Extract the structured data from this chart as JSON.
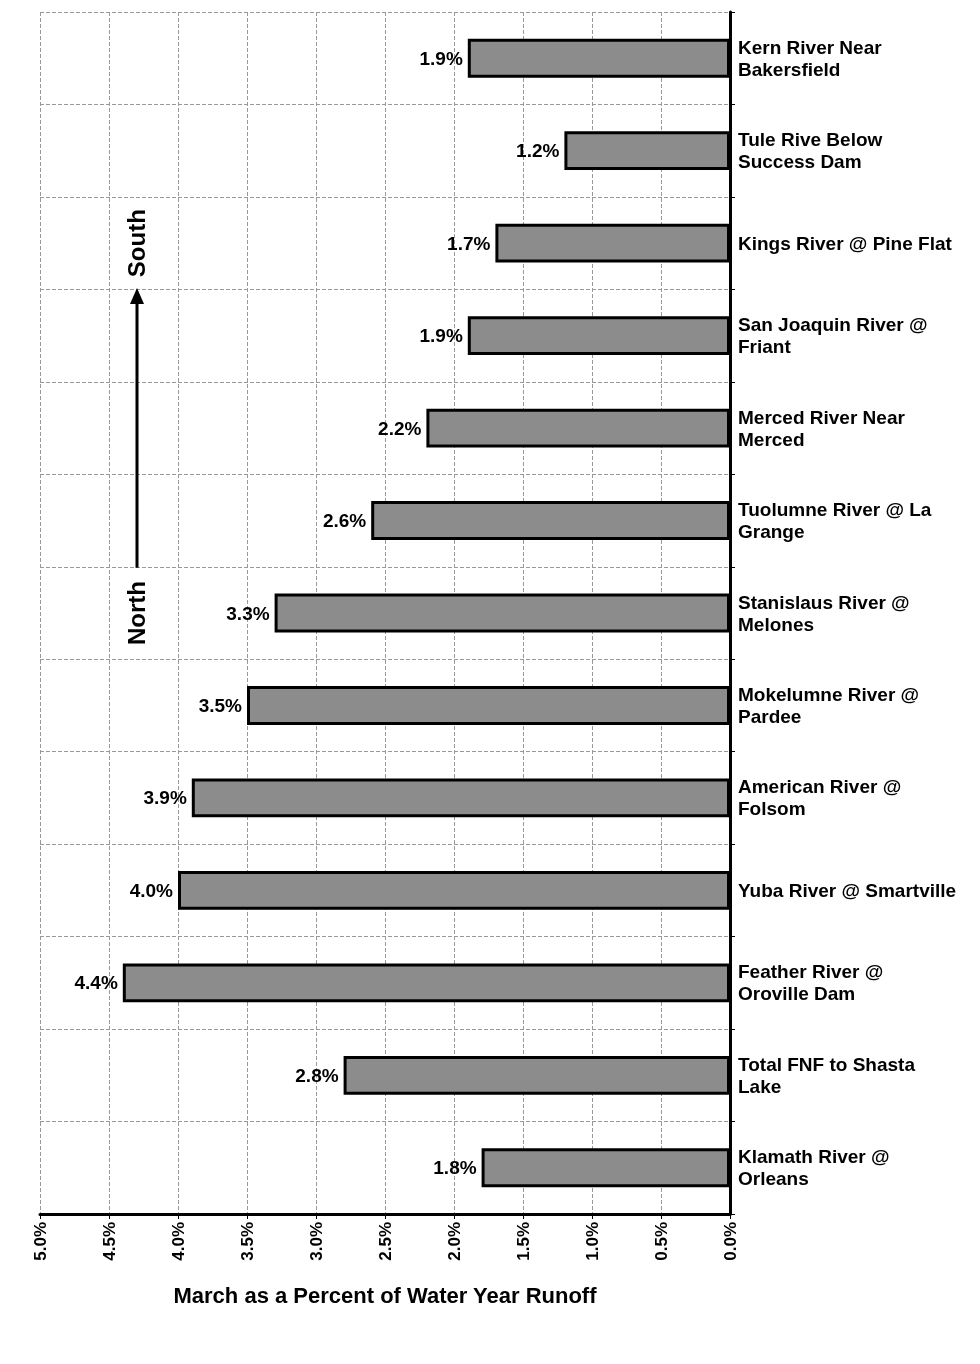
{
  "chart_data": {
    "type": "bar",
    "orientation": "horizontal",
    "xlabel": "March as a Percent of Water Year Runoff",
    "categories": [
      "Kern River Near Bakersfield",
      "Tule Rive Below Success Dam",
      "Kings River @ Pine Flat",
      "San Joaquin River @ Friant",
      "Merced River Near Merced",
      "Tuolumne River @ La Grange",
      "Stanislaus River @ Melones",
      "Mokelumne River @ Pardee",
      "American River @ Folsom",
      "Yuba River @ Smartville",
      "Feather River @ Oroville Dam",
      "Total FNF to Shasta Lake",
      "Klamath River @ Orleans"
    ],
    "values": [
      1.9,
      1.2,
      1.7,
      1.9,
      2.2,
      2.6,
      3.3,
      3.5,
      3.9,
      4.0,
      4.4,
      2.8,
      1.8
    ],
    "value_labels": [
      "1.9%",
      "1.2%",
      "1.7%",
      "1.9%",
      "2.2%",
      "2.6%",
      "3.3%",
      "3.5%",
      "3.9%",
      "4.0%",
      "4.4%",
      "2.8%",
      "1.8%"
    ],
    "color": "#8c8c8c",
    "xlim": [
      5,
      0
    ],
    "xticks": [
      {
        "value": 5,
        "label": "5.0%"
      },
      {
        "value": 4.5,
        "label": "4.5%"
      },
      {
        "value": 4,
        "label": "4.0%"
      },
      {
        "value": 3.5,
        "label": "3.5%"
      },
      {
        "value": 3,
        "label": "3.0%"
      },
      {
        "value": 2.5,
        "label": "2.5%"
      },
      {
        "value": 2,
        "label": "2.0%"
      },
      {
        "value": 1.5,
        "label": "1.5%"
      },
      {
        "value": 1,
        "label": "1.0%"
      },
      {
        "value": 0.5,
        "label": "0.5%"
      },
      {
        "value": 0,
        "label": "0.0%"
      }
    ],
    "annotations": [
      "North",
      "South"
    ],
    "grid": true
  }
}
